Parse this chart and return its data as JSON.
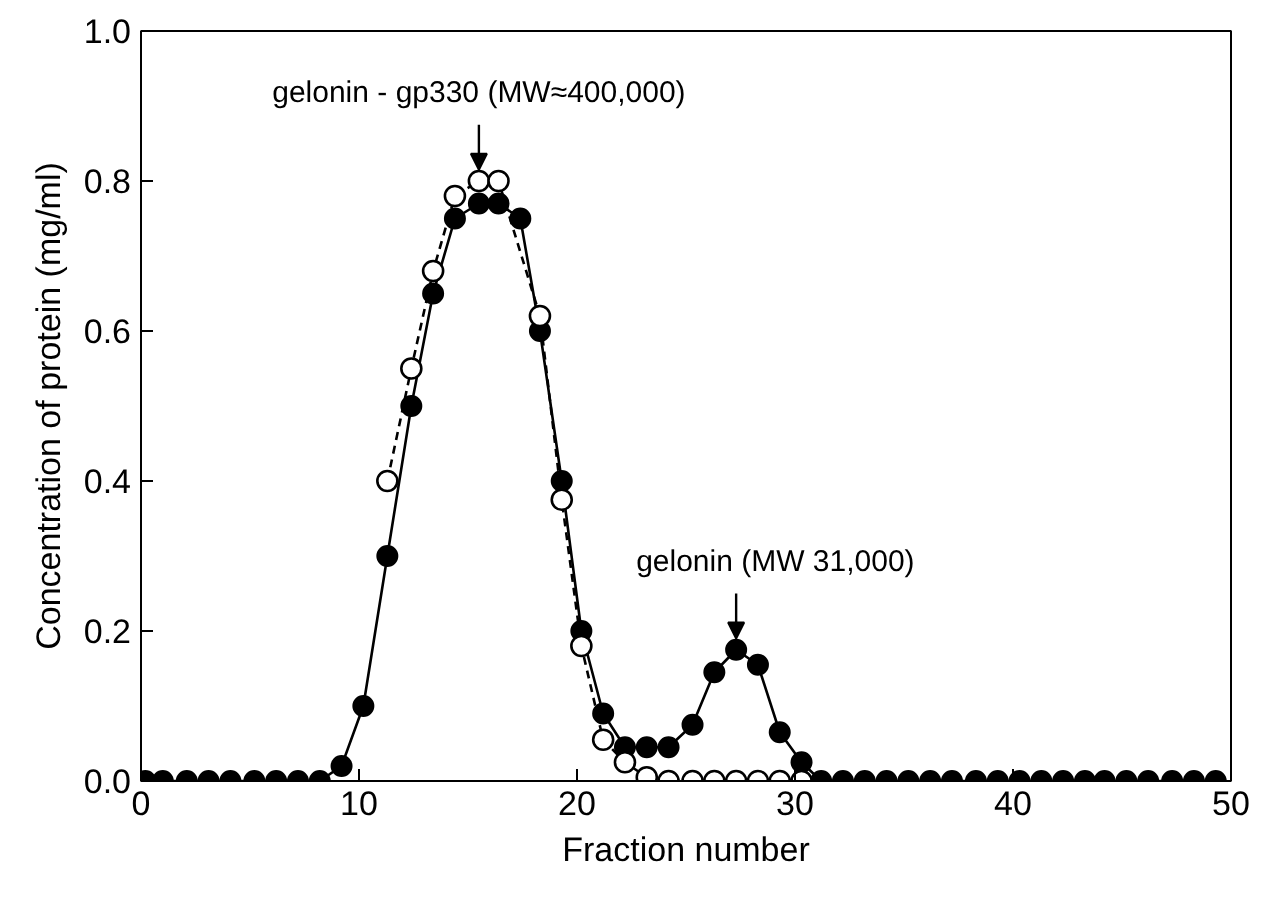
{
  "chart_data": {
    "type": "line",
    "xlabel": "Fraction number",
    "ylabel": "Concentration of protein (mg/ml)",
    "xlim": [
      0,
      50
    ],
    "ylim": [
      0,
      1.0
    ],
    "xticks": [
      0,
      10,
      20,
      30,
      40,
      50
    ],
    "yticks": [
      {
        "value": 0,
        "label": "0.0"
      },
      {
        "value": 0.2,
        "label": "0.2"
      },
      {
        "value": 0.4,
        "label": "0.4"
      },
      {
        "value": 0.6,
        "label": "0.6"
      },
      {
        "value": 0.8,
        "label": "0.8"
      },
      {
        "value": 1.0,
        "label": "1.0"
      }
    ],
    "grid": false,
    "series": [
      {
        "color": "#000000",
        "marker": "circle",
        "line_style": "solid",
        "x": [
          0.2,
          1.0,
          2.1,
          3.1,
          4.1,
          5.2,
          6.2,
          7.2,
          8.2,
          9.2,
          10.2,
          11.3,
          12.4,
          13.4,
          14.4,
          15.5,
          16.4,
          17.4,
          18.3,
          19.3,
          20.2,
          21.2,
          22.2,
          23.2,
          24.2,
          25.3,
          26.3,
          27.3,
          28.3,
          29.3,
          30.3,
          31.2,
          32.2,
          33.2,
          34.2,
          35.2,
          36.2,
          37.2,
          38.3,
          39.3,
          40.3,
          41.3,
          42.3,
          43.3,
          44.2,
          45.2,
          46.2,
          47.3,
          48.3,
          49.3
        ],
        "values": [
          0,
          0,
          0,
          0,
          0,
          0,
          0,
          0,
          0,
          0.02,
          0.1,
          0.3,
          0.5,
          0.65,
          0.75,
          0.77,
          0.77,
          0.75,
          0.6,
          0.4,
          0.2,
          0.09,
          0.045,
          0.045,
          0.045,
          0.075,
          0.145,
          0.175,
          0.155,
          0.065,
          0.025,
          0,
          0,
          0,
          0,
          0,
          0,
          0,
          0,
          0,
          0,
          0,
          0,
          0,
          0,
          0,
          0,
          0,
          0,
          0
        ]
      },
      {
        "color": "#000000",
        "marker": "open circle",
        "line_style": "dashed",
        "x": [
          11.3,
          12.4,
          13.4,
          14.4,
          15.5,
          16.4,
          18.3,
          19.3,
          20.2,
          21.2,
          22.2,
          23.2,
          24.2,
          25.3,
          26.3,
          27.3,
          28.3,
          29.3,
          30.3
        ],
        "values": [
          0.4,
          0.55,
          0.68,
          0.78,
          0.8,
          0.8,
          0.62,
          0.375,
          0.18,
          0.055,
          0.025,
          0.005,
          0,
          0,
          0,
          0,
          0,
          0,
          0
        ]
      }
    ],
    "annotations": [
      {
        "text": "gelonin - gp330 (MW≈400,000)",
        "x": 15.5,
        "y": 0.8
      },
      {
        "text": "gelonin (MW 31,000)",
        "x": 27.3,
        "y": 0.175
      }
    ]
  }
}
